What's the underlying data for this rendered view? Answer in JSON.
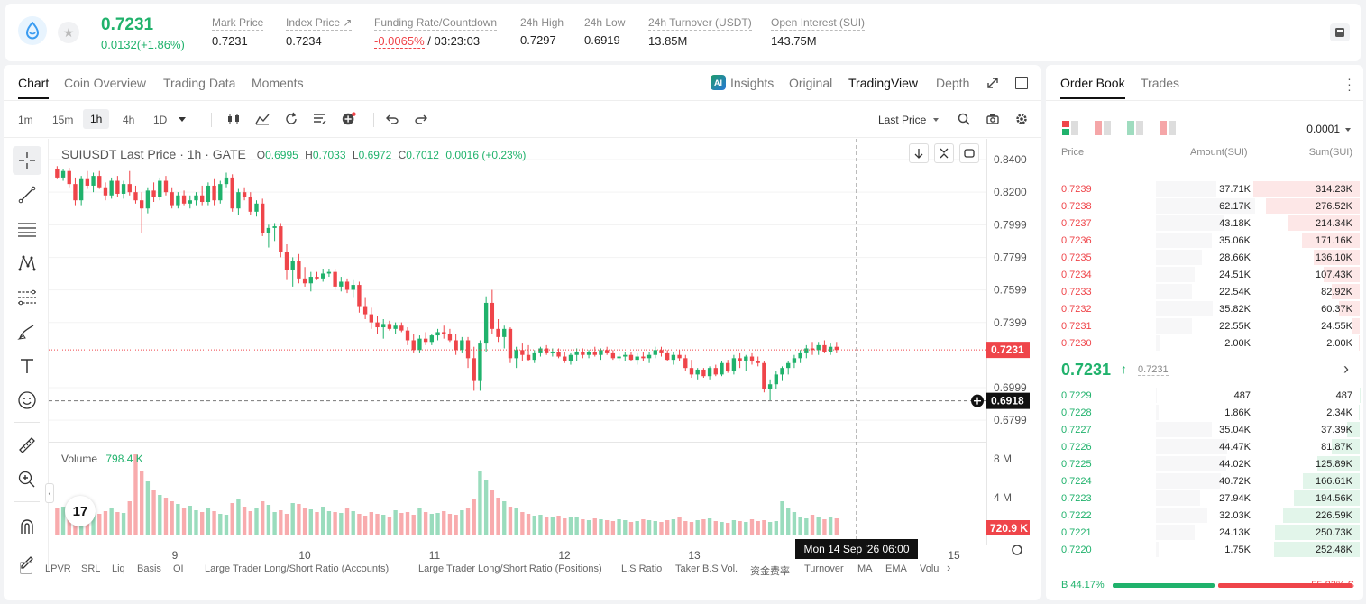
{
  "ticker": {
    "last_price": "0.7231",
    "change": "0.0132(+1.86%)"
  },
  "stats": [
    {
      "label": "Mark Price",
      "value": "0.7231"
    },
    {
      "label": "Index Price ↗",
      "value": "0.7234"
    },
    {
      "label": "Funding Rate/Countdown",
      "value_rate": "-0.0065%",
      "value_cd": " / 03:23:03"
    },
    {
      "label": "24h High",
      "value": "0.7297"
    },
    {
      "label": "24h Low",
      "value": "0.6919"
    },
    {
      "label": "24h Turnover (USDT)",
      "value": "13.85M"
    },
    {
      "label": "Open Interest (SUI)",
      "value": "143.75M"
    }
  ],
  "chart_tabs": [
    "Chart",
    "Coin Overview",
    "Trading Data",
    "Moments"
  ],
  "view_tabs": {
    "insights": "Insights",
    "original": "Original",
    "tradingview": "TradingView",
    "depth": "Depth"
  },
  "intervals": [
    "1m",
    "15m",
    "1h",
    "4h",
    "1D"
  ],
  "price_type": "Last Price",
  "legend": {
    "symbol": "SUIUSDT Last Price · 1h · GATE",
    "o_label": "O",
    "o": "0.6995",
    "h_label": "H",
    "h": "0.7033",
    "l_label": "L",
    "l": "0.6972",
    "c_label": "C",
    "c": "0.7012",
    "chg": "0.0016 (+0.23%)"
  },
  "volume_legend": {
    "label": "Volume",
    "value": "798.4 K"
  },
  "price_axis": [
    "0.8400",
    "0.8200",
    "0.7999",
    "0.7799",
    "0.7599",
    "0.7399",
    "0.6999",
    "0.6799"
  ],
  "last_price_tag": "0.7231",
  "cursor_price_tag": "0.6918",
  "volume_axis": [
    "8 M",
    "4 M"
  ],
  "volume_tag": "720.9 K",
  "x_axis": [
    "9",
    "10",
    "11",
    "12",
    "13",
    "15"
  ],
  "crosshair_time": "Mon 14 Sep '26   06:00",
  "tv_logo": "17",
  "indicators": [
    "LPVR",
    "SRL",
    "Liq",
    "Basis",
    "OI",
    "Large Trader Long/Short Ratio (Accounts)",
    "Large Trader Long/Short Ratio (Positions)",
    "L.S Ratio",
    "Taker B.S Vol.",
    "资金费率",
    "Turnover",
    "MA",
    "EMA",
    "Volu"
  ],
  "colors": {
    "up": "#20b26c",
    "down": "#ef454a"
  },
  "chart_data": {
    "type": "candlestick",
    "title": "SUIUSDT Last Price · 1h · GATE",
    "ylim": [
      0.67,
      0.85
    ],
    "x_ticks": [
      "9",
      "10",
      "11",
      "12",
      "13",
      "15"
    ],
    "candles_ohlc": [
      [
        0.834,
        0.836,
        0.828,
        0.829
      ],
      [
        0.829,
        0.834,
        0.827,
        0.833
      ],
      [
        0.833,
        0.835,
        0.823,
        0.825
      ],
      [
        0.825,
        0.829,
        0.812,
        0.815
      ],
      [
        0.815,
        0.83,
        0.812,
        0.828
      ],
      [
        0.828,
        0.833,
        0.822,
        0.824
      ],
      [
        0.824,
        0.832,
        0.82,
        0.83
      ],
      [
        0.83,
        0.833,
        0.822,
        0.823
      ],
      [
        0.823,
        0.826,
        0.815,
        0.818
      ],
      [
        0.818,
        0.829,
        0.816,
        0.827
      ],
      [
        0.827,
        0.83,
        0.817,
        0.819
      ],
      [
        0.819,
        0.827,
        0.816,
        0.825
      ],
      [
        0.825,
        0.833,
        0.818,
        0.82
      ],
      [
        0.82,
        0.824,
        0.813,
        0.815
      ],
      [
        0.815,
        0.82,
        0.795,
        0.81
      ],
      [
        0.81,
        0.823,
        0.807,
        0.821
      ],
      [
        0.821,
        0.826,
        0.814,
        0.817
      ],
      [
        0.817,
        0.829,
        0.815,
        0.827
      ],
      [
        0.827,
        0.83,
        0.818,
        0.82
      ],
      [
        0.82,
        0.823,
        0.81,
        0.812
      ],
      [
        0.812,
        0.82,
        0.81,
        0.818
      ],
      [
        0.818,
        0.821,
        0.812,
        0.813
      ],
      [
        0.813,
        0.818,
        0.81,
        0.815
      ],
      [
        0.815,
        0.82,
        0.812,
        0.818
      ],
      [
        0.818,
        0.824,
        0.812,
        0.814
      ],
      [
        0.814,
        0.826,
        0.812,
        0.824
      ],
      [
        0.824,
        0.828,
        0.812,
        0.815
      ],
      [
        0.815,
        0.827,
        0.813,
        0.825
      ],
      [
        0.825,
        0.832,
        0.823,
        0.829
      ],
      [
        0.829,
        0.831,
        0.808,
        0.81
      ],
      [
        0.81,
        0.822,
        0.806,
        0.82
      ],
      [
        0.82,
        0.823,
        0.815,
        0.817
      ],
      [
        0.817,
        0.82,
        0.806,
        0.808
      ],
      [
        0.808,
        0.815,
        0.805,
        0.813
      ],
      [
        0.813,
        0.816,
        0.793,
        0.795
      ],
      [
        0.795,
        0.8,
        0.786,
        0.798
      ],
      [
        0.798,
        0.801,
        0.79,
        0.799
      ],
      [
        0.799,
        0.801,
        0.78,
        0.783
      ],
      [
        0.783,
        0.788,
        0.766,
        0.772
      ],
      [
        0.772,
        0.78,
        0.762,
        0.778
      ],
      [
        0.778,
        0.782,
        0.764,
        0.767
      ],
      [
        0.767,
        0.774,
        0.762,
        0.764
      ],
      [
        0.764,
        0.771,
        0.759,
        0.768
      ],
      [
        0.768,
        0.771,
        0.766,
        0.767
      ],
      [
        0.767,
        0.773,
        0.765,
        0.77
      ],
      [
        0.77,
        0.773,
        0.768,
        0.771
      ],
      [
        0.771,
        0.773,
        0.76,
        0.762
      ],
      [
        0.762,
        0.768,
        0.759,
        0.765
      ],
      [
        0.765,
        0.767,
        0.758,
        0.76
      ],
      [
        0.76,
        0.766,
        0.755,
        0.763
      ],
      [
        0.763,
        0.765,
        0.746,
        0.75
      ],
      [
        0.75,
        0.755,
        0.742,
        0.745
      ],
      [
        0.745,
        0.749,
        0.736,
        0.74
      ],
      [
        0.74,
        0.744,
        0.733,
        0.737
      ],
      [
        0.737,
        0.742,
        0.73,
        0.739
      ],
      [
        0.739,
        0.741,
        0.735,
        0.736
      ],
      [
        0.736,
        0.74,
        0.733,
        0.738
      ],
      [
        0.738,
        0.74,
        0.734,
        0.735
      ],
      [
        0.735,
        0.737,
        0.726,
        0.729
      ],
      [
        0.729,
        0.733,
        0.721,
        0.723
      ],
      [
        0.723,
        0.732,
        0.721,
        0.73
      ],
      [
        0.73,
        0.734,
        0.726,
        0.728
      ],
      [
        0.728,
        0.733,
        0.726,
        0.732
      ],
      [
        0.732,
        0.736,
        0.729,
        0.734
      ],
      [
        0.734,
        0.738,
        0.73,
        0.733
      ],
      [
        0.733,
        0.736,
        0.728,
        0.729
      ],
      [
        0.729,
        0.733,
        0.72,
        0.723
      ],
      [
        0.723,
        0.731,
        0.721,
        0.729
      ],
      [
        0.729,
        0.731,
        0.712,
        0.718
      ],
      [
        0.718,
        0.725,
        0.698,
        0.704
      ],
      [
        0.704,
        0.729,
        0.698,
        0.727
      ],
      [
        0.727,
        0.756,
        0.722,
        0.752
      ],
      [
        0.752,
        0.76,
        0.733,
        0.736
      ],
      [
        0.736,
        0.742,
        0.728,
        0.731
      ],
      [
        0.731,
        0.738,
        0.724,
        0.736
      ],
      [
        0.736,
        0.737,
        0.715,
        0.718
      ],
      [
        0.718,
        0.725,
        0.712,
        0.723
      ],
      [
        0.723,
        0.727,
        0.716,
        0.72
      ],
      [
        0.72,
        0.726,
        0.716,
        0.717
      ],
      [
        0.717,
        0.723,
        0.715,
        0.721
      ],
      [
        0.721,
        0.725,
        0.719,
        0.724
      ],
      [
        0.724,
        0.726,
        0.72,
        0.721
      ],
      [
        0.721,
        0.724,
        0.719,
        0.722
      ],
      [
        0.722,
        0.724,
        0.718,
        0.719
      ],
      [
        0.719,
        0.722,
        0.715,
        0.716
      ],
      [
        0.716,
        0.721,
        0.714,
        0.72
      ],
      [
        0.72,
        0.724,
        0.716,
        0.722
      ],
      [
        0.722,
        0.724,
        0.718,
        0.72
      ],
      [
        0.72,
        0.723,
        0.718,
        0.722
      ],
      [
        0.722,
        0.725,
        0.719,
        0.72
      ],
      [
        0.72,
        0.724,
        0.717,
        0.723
      ],
      [
        0.723,
        0.725,
        0.72,
        0.721
      ],
      [
        0.721,
        0.723,
        0.717,
        0.718
      ],
      [
        0.718,
        0.721,
        0.716,
        0.719
      ],
      [
        0.719,
        0.722,
        0.716,
        0.72
      ],
      [
        0.72,
        0.722,
        0.716,
        0.717
      ],
      [
        0.717,
        0.721,
        0.714,
        0.719
      ],
      [
        0.719,
        0.722,
        0.716,
        0.718
      ],
      [
        0.718,
        0.722,
        0.715,
        0.72
      ],
      [
        0.72,
        0.725,
        0.718,
        0.723
      ],
      [
        0.723,
        0.725,
        0.719,
        0.721
      ],
      [
        0.721,
        0.723,
        0.716,
        0.717
      ],
      [
        0.717,
        0.722,
        0.714,
        0.72
      ],
      [
        0.72,
        0.723,
        0.716,
        0.718
      ],
      [
        0.718,
        0.72,
        0.71,
        0.712
      ],
      [
        0.712,
        0.717,
        0.706,
        0.708
      ],
      [
        0.708,
        0.712,
        0.705,
        0.711
      ],
      [
        0.711,
        0.712,
        0.706,
        0.707
      ],
      [
        0.707,
        0.713,
        0.705,
        0.712
      ],
      [
        0.712,
        0.714,
        0.707,
        0.708
      ],
      [
        0.708,
        0.716,
        0.707,
        0.715
      ],
      [
        0.715,
        0.717,
        0.709,
        0.71
      ],
      [
        0.71,
        0.72,
        0.708,
        0.718
      ],
      [
        0.718,
        0.721,
        0.712,
        0.716
      ],
      [
        0.716,
        0.72,
        0.71,
        0.719
      ],
      [
        0.719,
        0.721,
        0.714,
        0.716
      ],
      [
        0.716,
        0.719,
        0.713,
        0.715
      ],
      [
        0.715,
        0.716,
        0.697,
        0.699
      ],
      [
        0.699,
        0.705,
        0.692,
        0.702
      ],
      [
        0.702,
        0.71,
        0.699,
        0.708
      ],
      [
        0.708,
        0.713,
        0.704,
        0.712
      ],
      [
        0.712,
        0.716,
        0.708,
        0.715
      ],
      [
        0.715,
        0.72,
        0.712,
        0.718
      ],
      [
        0.718,
        0.723,
        0.715,
        0.721
      ],
      [
        0.721,
        0.726,
        0.718,
        0.724
      ],
      [
        0.724,
        0.728,
        0.72,
        0.723
      ],
      [
        0.723,
        0.728,
        0.72,
        0.726
      ],
      [
        0.726,
        0.729,
        0.721,
        0.722
      ],
      [
        0.722,
        0.727,
        0.72,
        0.725
      ],
      [
        0.725,
        0.728,
        0.721,
        0.723
      ]
    ],
    "volume_up_flags": "derived: close>=open",
    "volume_values_k": [
      300,
      320,
      280,
      250,
      340,
      230,
      260,
      240,
      270,
      300,
      260,
      250,
      380,
      900,
      720,
      600,
      500,
      450,
      420,
      380,
      350,
      300,
      330,
      280,
      260,
      310,
      270,
      240,
      230,
      360,
      410,
      320,
      270,
      300,
      380,
      340,
      260,
      280,
      240,
      360,
      350,
      300,
      290,
      260,
      320,
      270,
      260,
      250,
      300,
      270,
      240,
      220,
      260,
      240,
      230,
      210,
      280,
      250,
      260,
      230,
      300,
      260,
      240,
      250,
      270,
      240,
      230,
      280,
      300,
      400,
      720,
      620,
      500,
      420,
      380,
      320,
      300,
      260,
      240,
      220,
      230,
      210,
      200,
      220,
      190,
      210,
      200,
      180,
      170,
      190,
      180,
      170,
      160,
      180,
      170,
      150,
      160,
      180,
      170,
      160,
      150,
      170,
      180,
      200,
      160,
      150,
      170,
      180,
      190,
      160,
      150,
      140,
      170,
      160,
      150,
      180,
      160,
      170,
      150,
      160,
      380,
      300,
      260,
      210,
      190,
      230,
      200,
      180,
      210,
      190,
      170,
      180
    ]
  },
  "order_book": {
    "tabs": [
      "Order Book",
      "Trades"
    ],
    "precision": "0.0001",
    "headers": [
      "Price",
      "Amount(SUI)",
      "Sum(SUI)"
    ],
    "asks": [
      [
        "0.7239",
        "37.71K",
        "314.23K"
      ],
      [
        "0.7238",
        "62.17K",
        "276.52K"
      ],
      [
        "0.7237",
        "43.18K",
        "214.34K"
      ],
      [
        "0.7236",
        "35.06K",
        "171.16K"
      ],
      [
        "0.7235",
        "28.66K",
        "136.10K"
      ],
      [
        "0.7234",
        "24.51K",
        "107.43K"
      ],
      [
        "0.7233",
        "22.54K",
        "82.92K"
      ],
      [
        "0.7232",
        "35.82K",
        "60.37K"
      ],
      [
        "0.7231",
        "22.55K",
        "24.55K"
      ],
      [
        "0.7230",
        "2.00K",
        "2.00K"
      ]
    ],
    "mid_price": "0.7231",
    "mid_arrow": "↑",
    "mark": "0.7231",
    "bids": [
      [
        "0.7229",
        "487",
        "487"
      ],
      [
        "0.7228",
        "1.86K",
        "2.34K"
      ],
      [
        "0.7227",
        "35.04K",
        "37.39K"
      ],
      [
        "0.7226",
        "44.47K",
        "81.87K"
      ],
      [
        "0.7225",
        "44.02K",
        "125.89K"
      ],
      [
        "0.7224",
        "40.72K",
        "166.61K"
      ],
      [
        "0.7223",
        "27.94K",
        "194.56K"
      ],
      [
        "0.7222",
        "32.03K",
        "226.59K"
      ],
      [
        "0.7221",
        "24.13K",
        "250.73K"
      ],
      [
        "0.7220",
        "1.75K",
        "252.48K"
      ]
    ],
    "buy_ratio": "B 44.17%",
    "sell_ratio": "55.83% S",
    "buy_fraction": 0.4417
  }
}
